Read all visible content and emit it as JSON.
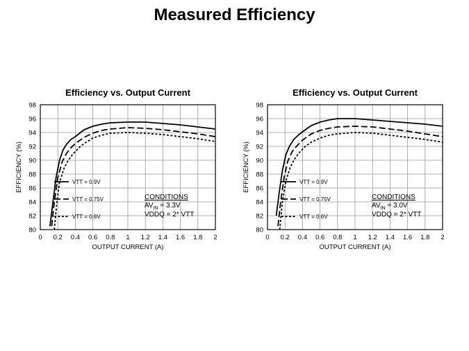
{
  "page": {
    "title": "Measured Efficiency"
  },
  "colors": {
    "background": "#ffffff",
    "ink": "#000000",
    "grid": "#999999"
  },
  "chart_data": [
    {
      "type": "line",
      "title": "Efficiency vs. Output Current",
      "xlabel": "OUTPUT CURRENT (A)",
      "ylabel": "EFFICIENCY (%)",
      "xlim": [
        0,
        2
      ],
      "ylim": [
        80,
        98
      ],
      "xticks": [
        "0",
        "0.2",
        "0.4",
        "0.6",
        "0.8",
        "1",
        "1.2",
        "1.4",
        "1.6",
        "1.8",
        "2"
      ],
      "yticks": [
        "80",
        "82",
        "84",
        "86",
        "88",
        "90",
        "92",
        "94",
        "96",
        "98"
      ],
      "grid": true,
      "legend": "center-left",
      "series": [
        {
          "name": "VTT = 0.9V",
          "style": "solid",
          "x": [
            0.11,
            0.14,
            0.18,
            0.22,
            0.26,
            0.3,
            0.35,
            0.4,
            0.5,
            0.6,
            0.7,
            0.8,
            1.0,
            1.2,
            1.4,
            1.6,
            1.8,
            2.0
          ],
          "y": [
            80.5,
            83.5,
            87.5,
            90.0,
            91.5,
            92.3,
            93.0,
            93.4,
            94.4,
            94.9,
            95.2,
            95.4,
            95.5,
            95.5,
            95.3,
            95.1,
            94.8,
            94.5
          ]
        },
        {
          "name": "VTT = 0.75V",
          "style": "dashed",
          "x": [
            0.13,
            0.16,
            0.2,
            0.25,
            0.3,
            0.35,
            0.4,
            0.5,
            0.6,
            0.7,
            0.8,
            1.0,
            1.2,
            1.4,
            1.6,
            1.8,
            2.0
          ],
          "y": [
            80.5,
            84.0,
            87.5,
            89.8,
            91.0,
            91.8,
            92.4,
            93.3,
            93.9,
            94.3,
            94.5,
            94.7,
            94.6,
            94.4,
            94.1,
            93.8,
            93.4
          ]
        },
        {
          "name": "VTT = 0.6V",
          "style": "dotted",
          "x": [
            0.16,
            0.19,
            0.22,
            0.27,
            0.32,
            0.38,
            0.45,
            0.5,
            0.6,
            0.7,
            0.8,
            1.0,
            1.2,
            1.4,
            1.6,
            1.8,
            2.0
          ],
          "y": [
            80.0,
            84.0,
            86.8,
            88.8,
            90.0,
            91.0,
            91.9,
            92.4,
            93.2,
            93.6,
            93.9,
            94.0,
            93.9,
            93.7,
            93.4,
            93.1,
            92.7
          ]
        }
      ],
      "conditions": {
        "heading": "CONDITIONS",
        "av_prefix": "AV",
        "av_sub": "IN",
        "av_value": " = 3.3V",
        "vddq": "VDDQ = 2* VTT"
      }
    },
    {
      "type": "line",
      "title": "Efficiency vs. Output Current",
      "xlabel": "OUTPUT CURRENT (A)",
      "ylabel": "EFFICIENCY (%)",
      "xlim": [
        0,
        2
      ],
      "ylim": [
        80,
        98
      ],
      "xticks": [
        "0",
        "0.2",
        "0.4",
        "0.6",
        "0.8",
        "1",
        "1.2",
        "1.4",
        "1.6",
        "1.8",
        "2"
      ],
      "yticks": [
        "80",
        "82",
        "84",
        "86",
        "88",
        "90",
        "92",
        "94",
        "96",
        "98"
      ],
      "grid": true,
      "legend": "center-left",
      "series": [
        {
          "name": "VTT = 0.9V",
          "style": "solid",
          "x": [
            0.1,
            0.13,
            0.17,
            0.21,
            0.25,
            0.3,
            0.35,
            0.4,
            0.5,
            0.6,
            0.7,
            0.8,
            1.0,
            1.2,
            1.4,
            1.6,
            1.8,
            2.0
          ],
          "y": [
            82.0,
            85.0,
            88.5,
            90.8,
            92.0,
            93.0,
            93.6,
            94.1,
            95.0,
            95.5,
            95.8,
            96.0,
            96.0,
            95.8,
            95.6,
            95.4,
            95.2,
            94.9
          ]
        },
        {
          "name": "VTT = 0.75V",
          "style": "dashed",
          "x": [
            0.12,
            0.15,
            0.19,
            0.23,
            0.28,
            0.33,
            0.4,
            0.5,
            0.6,
            0.7,
            0.8,
            1.0,
            1.2,
            1.4,
            1.6,
            1.8,
            2.0
          ],
          "y": [
            80.5,
            84.0,
            87.5,
            89.8,
            91.2,
            92.0,
            92.9,
            93.8,
            94.3,
            94.6,
            94.8,
            94.9,
            94.8,
            94.5,
            94.2,
            93.8,
            93.4
          ]
        },
        {
          "name": "VTT = 0.6V",
          "style": "dotted",
          "x": [
            0.14,
            0.17,
            0.21,
            0.26,
            0.31,
            0.37,
            0.43,
            0.5,
            0.6,
            0.7,
            0.8,
            1.0,
            1.2,
            1.4,
            1.6,
            1.8,
            2.0
          ],
          "y": [
            80.0,
            84.0,
            87.0,
            89.0,
            90.2,
            91.2,
            92.0,
            92.6,
            93.2,
            93.6,
            93.8,
            94.0,
            93.9,
            93.6,
            93.3,
            93.0,
            92.6
          ]
        }
      ],
      "conditions": {
        "heading": "CONDITIONS",
        "av_prefix": "AV",
        "av_sub": "IN",
        "av_value": " = 3.0V",
        "vddq": "VDDQ = 2* VTT"
      }
    }
  ]
}
